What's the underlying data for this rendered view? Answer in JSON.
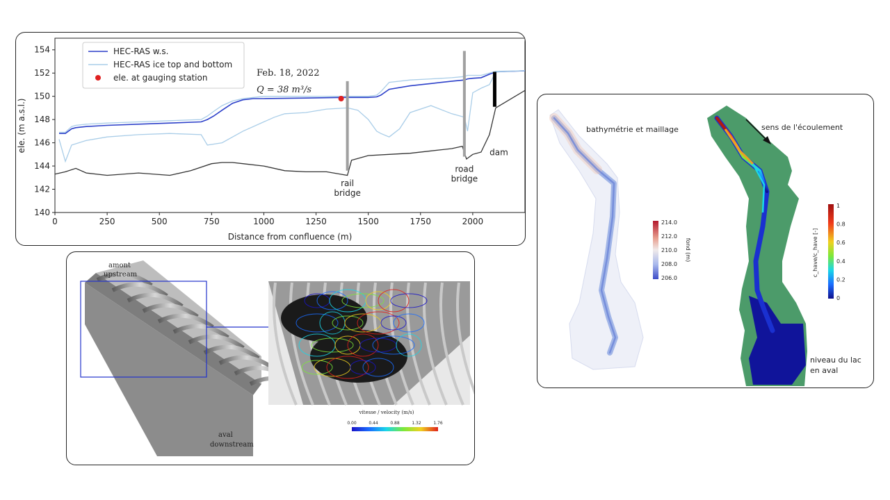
{
  "chart_data": [
    {
      "type": "line",
      "title": "",
      "xlabel": "Distance from confluence (m)",
      "ylabel": "ele. (m a.s.l.)",
      "xlim": [
        0,
        2250
      ],
      "ylim": [
        140,
        155
      ],
      "x_ticks": [
        "0",
        "250",
        "500",
        "750",
        "1000",
        "1250",
        "1500",
        "1750",
        "2000"
      ],
      "x_tick_values": [
        0,
        250,
        500,
        750,
        1000,
        1250,
        1500,
        1750,
        2000
      ],
      "y_ticks": [
        "140",
        "142",
        "144",
        "146",
        "148",
        "150",
        "152",
        "154"
      ],
      "y_tick_values": [
        140,
        142,
        144,
        146,
        148,
        150,
        152,
        154
      ],
      "grid": false,
      "legend": "top-left",
      "legend_entries": [
        "HEC-RAS w.s.",
        "HEC-RAS ice top and bottom",
        "ele. at gauging station"
      ],
      "series": [
        {
          "name": "HEC-RAS w.s.",
          "color": "#2b3fc9",
          "x": [
            20,
            50,
            80,
            100,
            150,
            250,
            400,
            550,
            700,
            730,
            760,
            800,
            850,
            900,
            950,
            1000,
            1200,
            1380,
            1420,
            1500,
            1540,
            1560,
            1600,
            1700,
            1800,
            1900,
            1960,
            1975,
            2000,
            2040,
            2080,
            2110,
            2250
          ],
          "y": [
            146.8,
            146.8,
            147.2,
            147.3,
            147.4,
            147.5,
            147.6,
            147.7,
            147.8,
            148.0,
            148.3,
            148.8,
            149.4,
            149.7,
            149.8,
            149.8,
            149.85,
            149.9,
            149.9,
            149.9,
            149.95,
            150.1,
            150.6,
            150.9,
            151.1,
            151.3,
            151.4,
            151.5,
            151.55,
            151.6,
            151.9,
            152.1,
            152.2
          ]
        },
        {
          "name": "HEC-RAS ice top and bottom",
          "color": "#a9cde8",
          "x": [
            20,
            50,
            80,
            100,
            150,
            250,
            400,
            550,
            700,
            730,
            760,
            800,
            850,
            900,
            950,
            1000,
            1200,
            1380,
            1420,
            1500,
            1540,
            1560,
            1600,
            1700,
            1800,
            1900,
            1960,
            1975,
            2000,
            2040,
            2080,
            2110,
            2250
          ],
          "y": [
            146.9,
            146.9,
            147.4,
            147.5,
            147.6,
            147.7,
            147.8,
            147.9,
            148.0,
            148.3,
            148.7,
            149.2,
            149.6,
            149.8,
            149.9,
            150.0,
            150.0,
            150.0,
            150.0,
            150.0,
            150.1,
            150.4,
            151.2,
            151.4,
            151.5,
            151.6,
            151.7,
            151.8,
            151.8,
            151.8,
            152.0,
            152.15,
            152.2
          ]
        },
        {
          "name": "ice bottom",
          "color": "#a9cde8",
          "x": [
            20,
            50,
            80,
            150,
            250,
            400,
            550,
            700,
            730,
            800,
            900,
            1000,
            1050,
            1100,
            1200,
            1300,
            1400,
            1450,
            1500,
            1540,
            1560,
            1600,
            1650,
            1700,
            1800,
            1900,
            1960,
            1975,
            2000,
            2040,
            2080,
            2110,
            2250
          ],
          "y": [
            146.3,
            144.4,
            145.8,
            146.2,
            146.5,
            146.7,
            146.8,
            146.7,
            145.8,
            146.0,
            147.0,
            147.8,
            148.2,
            148.5,
            148.6,
            148.9,
            149.0,
            148.8,
            148.0,
            147.0,
            146.8,
            146.5,
            147.2,
            148.6,
            149.2,
            148.5,
            148.2,
            147.0,
            150.3,
            150.7,
            151.0,
            152.1,
            152.2
          ]
        },
        {
          "name": "bed",
          "color": "#333333",
          "x": [
            0,
            50,
            100,
            150,
            250,
            400,
            550,
            650,
            750,
            800,
            850,
            900,
            1000,
            1100,
            1200,
            1300,
            1400,
            1420,
            1500,
            1600,
            1700,
            1800,
            1900,
            1950,
            1970,
            2000,
            2040,
            2080,
            2110,
            2250
          ],
          "y": [
            143.3,
            143.5,
            143.8,
            143.4,
            143.2,
            143.4,
            143.2,
            143.6,
            144.2,
            144.3,
            144.3,
            144.2,
            144.0,
            143.6,
            143.5,
            143.5,
            143.2,
            144.5,
            144.9,
            145.0,
            145.1,
            145.3,
            145.5,
            145.7,
            144.6,
            145.0,
            145.2,
            146.7,
            149.0,
            150.5
          ]
        }
      ],
      "gauging_point": {
        "x": 1370,
        "y": 149.8,
        "color": "#e02020"
      },
      "structures": [
        {
          "label_line1": "rail",
          "label_line2": "bridge",
          "x": 1400,
          "top": 151.3,
          "bottom": 143.6
        },
        {
          "label_line1": "road",
          "label_line2": "bridge",
          "x": 1960,
          "top": 153.9,
          "bottom": 144.8
        },
        {
          "label_line1": "dam",
          "label_line2": "",
          "x": 2105,
          "top": 152.1,
          "bottom": 149.1
        }
      ],
      "annotation_date": "Feb. 18, 2022",
      "annotation_flow": "Q = 38 m³/s"
    },
    {
      "type": "heatmap",
      "title": "",
      "colorbar_label": "vitesse / velocity (m/s)",
      "colorbar_ticks": [
        "0.00",
        "0.44",
        "0.88",
        "1.32",
        "1.76"
      ],
      "colorbar_min": 0.0,
      "colorbar_max": 1.76
    },
    {
      "type": "heatmap",
      "title": "bathymétrie et maillage",
      "colorbar_label": "fond (m)",
      "colorbar_ticks": [
        "214.0",
        "212.0",
        "210.0",
        "208.0",
        "206.0"
      ],
      "colorbar_min": 206.0,
      "colorbar_max": 214.0
    },
    {
      "type": "heatmap",
      "title": "sens de l'écoulement",
      "colorbar_label": "c_have/c_have [-]",
      "colorbar_ticks": [
        "1",
        "0.8",
        "0.6",
        "0.4",
        "0.2",
        "0"
      ],
      "colorbar_min": 0,
      "colorbar_max": 1
    }
  ],
  "culvert": {
    "label_up_fr": "amont",
    "label_up_en": "upstream",
    "label_down_fr": "aval",
    "label_down_en": "downstream",
    "accent": "#2233cc"
  },
  "river": {
    "label_lake_1": "niveau du lac",
    "label_lake_2": "en aval",
    "green": "#4c9b6a"
  }
}
